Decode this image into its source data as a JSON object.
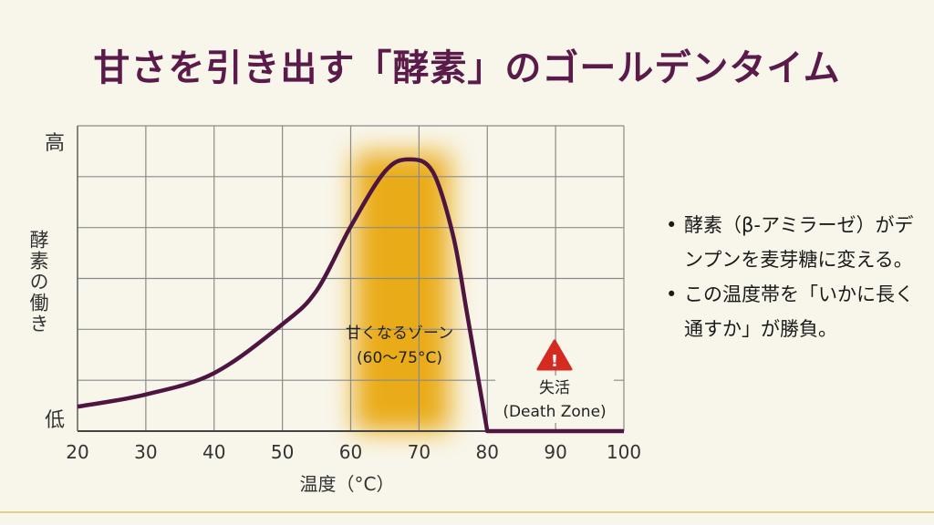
{
  "title": "甘さを引き出す「酵素」のゴールデンタイム",
  "chart_data": {
    "type": "line",
    "xlabel": "温度（°C）",
    "ylabel": "酵素の働き",
    "xlim": [
      20,
      100
    ],
    "x_ticks": [
      "20",
      "30",
      "40",
      "50",
      "60",
      "70",
      "80",
      "90",
      "100"
    ],
    "y_tick_labels": {
      "high": "高",
      "low": "低"
    },
    "ylim": [
      0,
      1
    ],
    "grid": true,
    "series": [
      {
        "color": "#4e1540",
        "x": [
          20,
          30,
          40,
          50,
          55,
          60,
          65,
          68.5,
          72,
          75,
          77,
          79,
          80,
          100
        ],
        "y": [
          0.08,
          0.12,
          0.19,
          0.35,
          0.46,
          0.67,
          0.85,
          0.89,
          0.85,
          0.64,
          0.39,
          0.13,
          0,
          0
        ]
      }
    ],
    "annotations": {
      "sweet_zone": {
        "range": [
          60,
          75
        ],
        "label": "甘くなるゾーン",
        "sublabel": "(60〜75°C)",
        "color": "#e9a80f"
      },
      "death_zone": {
        "label": "失活",
        "sublabel": "(Death Zone)",
        "icon": "warning-triangle-icon",
        "color": "#d42a1f"
      }
    }
  },
  "bullets": [
    "酵素（β-アミラーゼ）がデンプンを麦芽糖に変える。",
    "この温度帯を「いかに長く通すか」が勝負。"
  ],
  "bullet_marker": "•"
}
